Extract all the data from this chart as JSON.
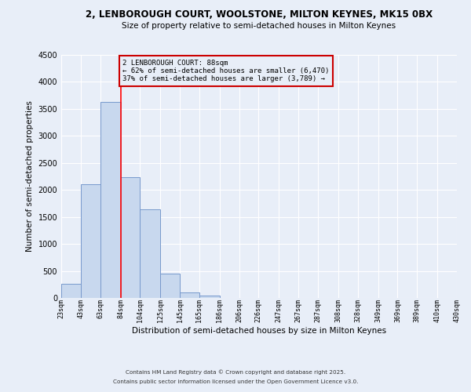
{
  "title": "2, LENBOROUGH COURT, WOOLSTONE, MILTON KEYNES, MK15 0BX",
  "subtitle": "Size of property relative to semi-detached houses in Milton Keynes",
  "xlabel": "Distribution of semi-detached houses by size in Milton Keynes",
  "ylabel": "Number of semi-detached properties",
  "background_color": "#e8eef8",
  "bar_color": "#c8d8ee",
  "bar_edge_color": "#7799cc",
  "grid_color": "#ffffff",
  "bin_edges": [
    23,
    43,
    63,
    84,
    104,
    125,
    145,
    165,
    186,
    206,
    226,
    247,
    267,
    287,
    308,
    328,
    349,
    369,
    389,
    410,
    430
  ],
  "bin_labels": [
    "23sqm",
    "43sqm",
    "63sqm",
    "84sqm",
    "104sqm",
    "125sqm",
    "145sqm",
    "165sqm",
    "186sqm",
    "206sqm",
    "226sqm",
    "247sqm",
    "267sqm",
    "287sqm",
    "308sqm",
    "328sqm",
    "349sqm",
    "369sqm",
    "389sqm",
    "410sqm",
    "430sqm"
  ],
  "bar_heights": [
    255,
    2100,
    3630,
    2240,
    1640,
    450,
    100,
    50,
    0,
    0,
    0,
    0,
    0,
    0,
    0,
    0,
    0,
    0,
    0,
    0
  ],
  "ylim": [
    0,
    4500
  ],
  "yticks": [
    0,
    500,
    1000,
    1500,
    2000,
    2500,
    3000,
    3500,
    4000,
    4500
  ],
  "property_line_x": 84,
  "annotation_title": "2 LENBOROUGH COURT: 88sqm",
  "annotation_line1": "← 62% of semi-detached houses are smaller (6,470)",
  "annotation_line2": "37% of semi-detached houses are larger (3,789) →",
  "annotation_box_color": "#cc0000",
  "footer1": "Contains HM Land Registry data © Crown copyright and database right 2025.",
  "footer2": "Contains public sector information licensed under the Open Government Licence v3.0."
}
